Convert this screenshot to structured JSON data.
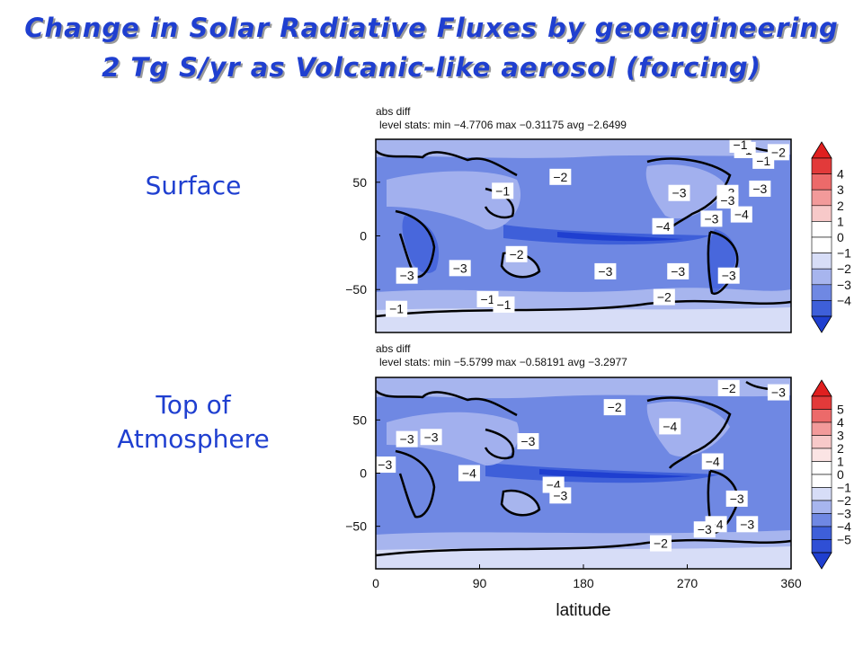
{
  "title_line1": "Change in Solar Radiative Fluxes by geoengineering",
  "title_line2": "2 Tg S/yr as Volcanic-like aerosol (forcing)",
  "panels": [
    {
      "side_label_line1": "Surface",
      "side_label_line2": "",
      "stats_line1": "abs diff",
      "stats_line2": "level stats:  min −4.7706 max −0.31175 avg −2.6499",
      "colorbar_levels": [
        "4",
        "3",
        "2",
        "1",
        "0",
        "−1",
        "−2",
        "−3",
        "−4"
      ],
      "contour_labels": [
        {
          "text": "−1",
          "x": 336,
          "y": 70
        },
        {
          "text": "−1",
          "x": 320,
          "y": 80
        },
        {
          "text": "−2",
          "x": 349,
          "y": 78
        },
        {
          "text": "−1",
          "x": 316,
          "y": 85
        },
        {
          "text": "−2",
          "x": 160,
          "y": 55
        },
        {
          "text": "−1",
          "x": 110,
          "y": 42
        },
        {
          "text": "−3",
          "x": 263,
          "y": 40
        },
        {
          "text": "−3",
          "x": 305,
          "y": 40
        },
        {
          "text": "−3",
          "x": 305,
          "y": 33
        },
        {
          "text": "−3",
          "x": 333,
          "y": 44
        },
        {
          "text": "−4",
          "x": 317,
          "y": 20
        },
        {
          "text": "−3",
          "x": 291,
          "y": 16
        },
        {
          "text": "−4",
          "x": 249,
          "y": 9
        },
        {
          "text": "−2",
          "x": 122,
          "y": -17
        },
        {
          "text": "−3",
          "x": 27,
          "y": -37
        },
        {
          "text": "−3",
          "x": 73,
          "y": -30
        },
        {
          "text": "−3",
          "x": 199,
          "y": -33
        },
        {
          "text": "−3",
          "x": 262,
          "y": -33
        },
        {
          "text": "−3",
          "x": 306,
          "y": -37
        },
        {
          "text": "−2",
          "x": 250,
          "y": -57
        },
        {
          "text": "−1",
          "x": 97,
          "y": -59
        },
        {
          "text": "−1",
          "x": 111,
          "y": -64
        },
        {
          "text": "−1",
          "x": 18,
          "y": -68
        }
      ]
    },
    {
      "side_label_line1": "Top of",
      "side_label_line2": "Atmosphere",
      "stats_line1": "abs diff",
      "stats_line2": "level stats:  min −5.5799 max −0.58191 avg −3.2977",
      "colorbar_levels": [
        "5",
        "4",
        "3",
        "2",
        "1",
        "0",
        "−1",
        "−2",
        "−3",
        "−4",
        "−5"
      ],
      "contour_labels": [
        {
          "text": "−2",
          "x": 306,
          "y": 80
        },
        {
          "text": "−3",
          "x": 349,
          "y": 76
        },
        {
          "text": "−2",
          "x": 207,
          "y": 62
        },
        {
          "text": "−4",
          "x": 255,
          "y": 44
        },
        {
          "text": "−3",
          "x": 27,
          "y": 32
        },
        {
          "text": "−3",
          "x": 48,
          "y": 34
        },
        {
          "text": "−3",
          "x": 132,
          "y": 30
        },
        {
          "text": "−4",
          "x": 292,
          "y": 11
        },
        {
          "text": "−3",
          "x": 8,
          "y": 8
        },
        {
          "text": "−4",
          "x": 81,
          "y": 0
        },
        {
          "text": "−4",
          "x": 154,
          "y": -11
        },
        {
          "text": "−3",
          "x": 160,
          "y": -21
        },
        {
          "text": "−3",
          "x": 313,
          "y": -24
        },
        {
          "text": "−4",
          "x": 295,
          "y": -48
        },
        {
          "text": "−3",
          "x": 285,
          "y": -53
        },
        {
          "text": "−3",
          "x": 322,
          "y": -48
        },
        {
          "text": "−2",
          "x": 247,
          "y": -66
        }
      ]
    }
  ],
  "chart_data": {
    "type": "heatmap",
    "xlabel": "latitude",
    "x_ticks": [
      0,
      90,
      180,
      270,
      360
    ],
    "y_ticks": [
      50,
      0,
      -50
    ],
    "xlim": [
      0,
      360
    ],
    "ylim": [
      -90,
      90
    ],
    "colors": {
      "darkest": "#1f3fd0",
      "deep": "#3e5fd9",
      "medium": "#6f88e3",
      "light": "#a7b5ee",
      "pale": "#d7ddf7",
      "white": "#ffffff",
      "pink1": "#f7c9c9",
      "pink2": "#f29a9a",
      "red1": "#ec6a6a",
      "red2": "#e23a3a"
    }
  }
}
